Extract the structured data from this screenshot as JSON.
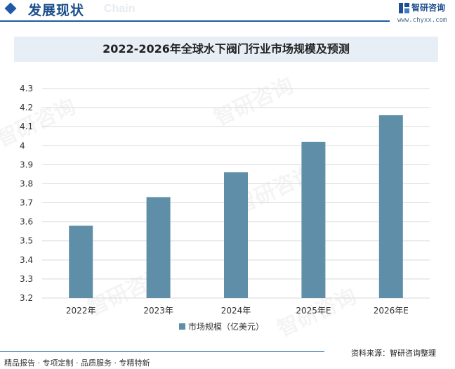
{
  "header": {
    "title": "发展现状",
    "subtitle": "Chain",
    "brand_name": "智研咨询",
    "brand_url": "www.chyxx.com"
  },
  "chart_data": {
    "type": "bar",
    "title": "2022-2026年全球水下阀门行业市场规模及预测",
    "categories": [
      "2022年",
      "2023年",
      "2024年",
      "2025年E",
      "2026年E"
    ],
    "series": [
      {
        "name": "市场规模（亿美元）",
        "values": [
          3.58,
          3.73,
          3.86,
          4.02,
          4.16
        ],
        "color": "#5f8fa8"
      }
    ],
    "yticks": [
      "3.2",
      "3.3",
      "3.4",
      "3.5",
      "3.6",
      "3.7",
      "3.8",
      "3.9",
      "4",
      "4.1",
      "4.2",
      "4.3"
    ],
    "ylim": [
      3.2,
      4.3
    ],
    "grid": true,
    "legend": "bottom"
  },
  "watermark": "智研咨询",
  "footer": {
    "left": "精品报告 · 专项定制 · 品质服务 · 专精特新",
    "right": "资料来源：智研咨询整理"
  }
}
